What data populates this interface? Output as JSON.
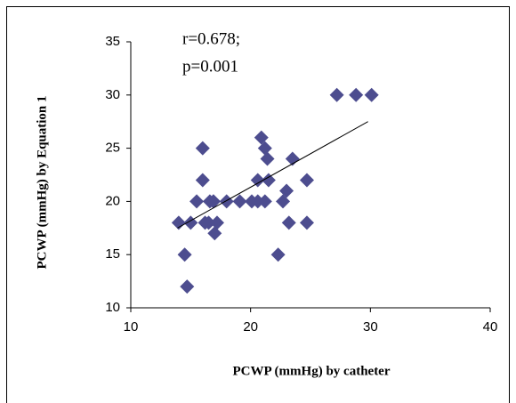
{
  "chart_data": {
    "type": "scatter",
    "x_label": "PCWP (mmHg) by catheter",
    "y_label": "PCWP (mmHg) by Equation 1",
    "annotations": [
      "r=0.678;",
      "p=0.001"
    ],
    "xlim": [
      10,
      40
    ],
    "xticks": [
      10,
      20,
      30,
      40
    ],
    "ylim": [
      10,
      35
    ],
    "yticks": [
      10,
      15,
      20,
      25,
      30,
      35
    ],
    "color": "#4d4d8f",
    "x": [
      27.2,
      28.8,
      30.1,
      20.9,
      21.2,
      21.4,
      23.5,
      16.0,
      16.0,
      14.7,
      14.0,
      14.5,
      15.5,
      15.0,
      16.2,
      16.5,
      16.6,
      17.0,
      16.9,
      17.2,
      16.9,
      18.0,
      19.1,
      20.1,
      20.6,
      21.2,
      20.6,
      21.5,
      22.7,
      23.0,
      22.3,
      23.2,
      24.7,
      24.7
    ],
    "y": [
      30,
      30,
      30,
      26,
      25,
      24,
      24,
      25,
      22,
      12,
      18,
      15,
      20,
      18,
      18,
      18,
      20,
      17,
      20,
      18,
      20,
      20,
      20,
      20,
      20,
      20,
      22,
      22,
      20,
      21,
      15,
      18,
      18,
      22
    ],
    "trend_line": {
      "x": [
        13.9,
        29.8
      ],
      "y": [
        17.5,
        27.5
      ]
    }
  }
}
